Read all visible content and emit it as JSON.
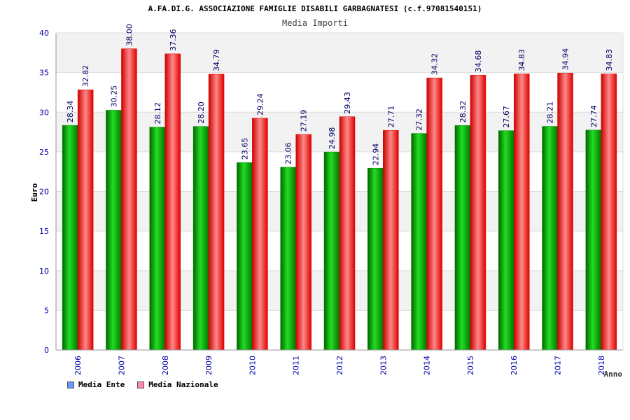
{
  "header": {
    "title": "A.FA.DI.G. ASSOCIAZIONE FAMIGLIE DISABILI GARBAGNATESI (c.f.97081540151)",
    "subtitle": "Media Importi"
  },
  "legend": [
    {
      "label": "Media Ente",
      "color": "#6699ff"
    },
    {
      "label": "Media Nazionale",
      "color": "#ff88aa"
    }
  ],
  "chart_data": {
    "type": "bar",
    "title": "Media Importi",
    "xlabel": "Anno",
    "ylabel": "Euro",
    "ylim": [
      0,
      40
    ],
    "yticks": [
      0,
      5,
      10,
      15,
      20,
      25,
      30,
      35,
      40
    ],
    "categories": [
      "2006",
      "2007",
      "2008",
      "2009",
      "2010",
      "2011",
      "2012",
      "2013",
      "2014",
      "2015",
      "2016",
      "2017",
      "2018"
    ],
    "series": [
      {
        "name": "Media Ente",
        "color": "#00aa00",
        "values": [
          28.34,
          30.25,
          28.12,
          28.2,
          23.65,
          23.06,
          24.98,
          22.94,
          27.32,
          28.32,
          27.67,
          28.21,
          27.74
        ],
        "labels": [
          "28.34",
          "30.25",
          "28.12",
          "28.20",
          "23.65",
          "23.06",
          "24.98",
          "22.94",
          "27.32",
          "28.32",
          "27.67",
          "28.21",
          "27.74"
        ]
      },
      {
        "name": "Media Nazionale",
        "color": "#ee0000",
        "values": [
          32.82,
          38.0,
          37.36,
          34.79,
          29.24,
          27.19,
          29.43,
          27.71,
          34.32,
          34.68,
          34.83,
          34.94,
          34.83
        ],
        "labels": [
          "32.82",
          "38.00",
          "37.36",
          "34.79",
          "29.24",
          "27.19",
          "29.43",
          "27.71",
          "34.32",
          "34.68",
          "34.83",
          "34.94",
          "34.83"
        ]
      }
    ]
  }
}
